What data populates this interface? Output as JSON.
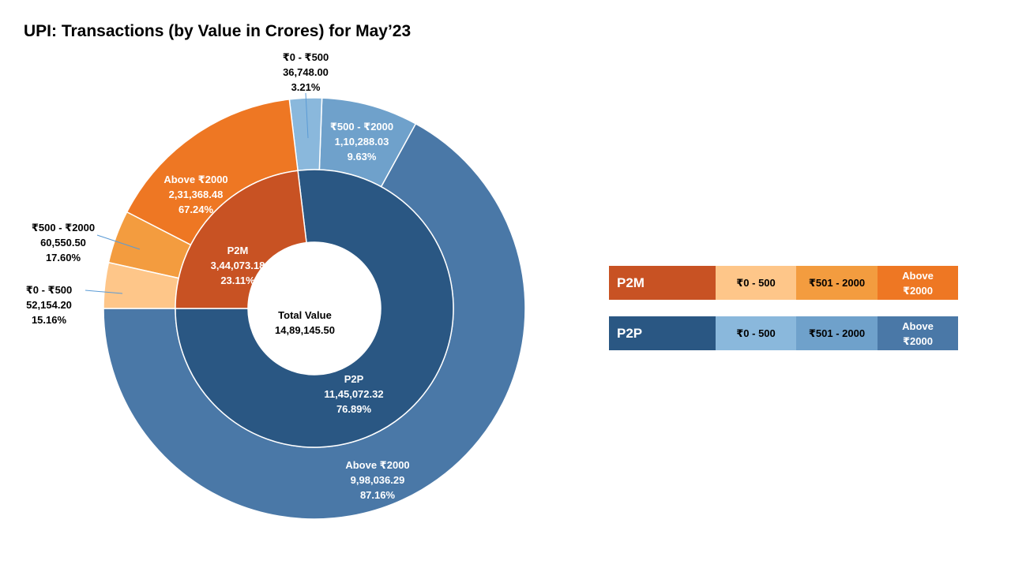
{
  "colors": {
    "p2m": "#C85223",
    "p2m_0_500": "#FEC689",
    "p2m_500_2000": "#F39C3F",
    "p2m_above_2000": "#EE7723",
    "p2p": "#2A5783",
    "p2p_0_500": "#8AB8DC",
    "p2p_500_2000": "#6FA1CB",
    "p2p_above_2000": "#4A78A7"
  },
  "chart_data": {
    "type": "sunburst",
    "title": "UPI: Transactions (by Value in Crores) for May’23",
    "center_label": "Total Value",
    "center_value": "14,89,145.50",
    "total": 1489145.5,
    "inner": [
      {
        "name": "P2P",
        "value": 1145072.32,
        "value_text": "11,45,072.32",
        "pct_text": "76.89%"
      },
      {
        "name": "P2M",
        "value": 344073.18,
        "value_text": "3,44,073.18",
        "pct_text": "23.11%"
      }
    ],
    "outer": [
      {
        "parent": "P2P",
        "name": "₹0 - ₹500",
        "value": 36748.0,
        "value_text": "36,748.00",
        "pct_text": "3.21%"
      },
      {
        "parent": "P2P",
        "name": "₹500 - ₹2000",
        "value": 110288.03,
        "value_text": "1,10,288.03",
        "pct_text": "9.63%"
      },
      {
        "parent": "P2P",
        "name": "Above ₹2000",
        "value": 998036.29,
        "value_text": "9,98,036.29",
        "pct_text": "87.16%"
      },
      {
        "parent": "P2M",
        "name": "₹0 - ₹500",
        "value": 52154.2,
        "value_text": "52,154.20",
        "pct_text": "15.16%"
      },
      {
        "parent": "P2M",
        "name": "₹500 - ₹2000",
        "value": 60550.5,
        "value_text": "60,550.50",
        "pct_text": "17.60%"
      },
      {
        "parent": "P2M",
        "name": "Above ₹2000",
        "value": 231368.48,
        "value_text": "2,31,368.48",
        "pct_text": "67.24%"
      }
    ]
  },
  "legend": [
    {
      "name": "P2M",
      "c1": "₹0 - 500",
      "c2": "₹501 - 2000",
      "c3_line1": "Above",
      "c3_line2": "₹2000"
    },
    {
      "name": "P2P",
      "c1": "₹0 - 500",
      "c2": "₹501 - 2000",
      "c3_line1": "Above",
      "c3_line2": "₹2000"
    }
  ]
}
